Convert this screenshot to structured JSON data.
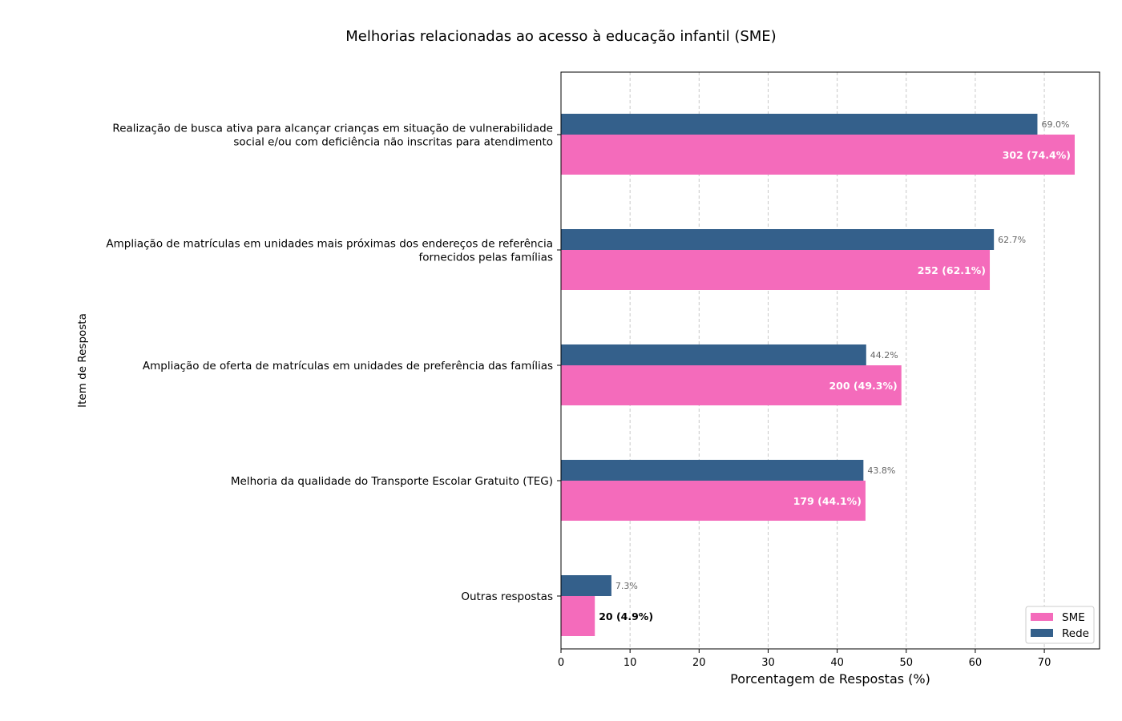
{
  "chart_data": {
    "type": "bar",
    "orientation": "horizontal",
    "title": "Melhorias relacionadas ao acesso à educação infantil (SME)",
    "xlabel": "Porcentagem de Respostas (%)",
    "ylabel": "Item de Resposta",
    "xlim": [
      0,
      78
    ],
    "xticks": [
      0,
      10,
      20,
      30,
      40,
      50,
      60,
      70
    ],
    "grid": "x-dashed",
    "legend_position": "bottom-right",
    "categories": [
      [
        "Realização de busca ativa para alcançar crianças em situação de vulnerabilidade",
        "social e/ou com deficiência não inscritas para atendimento"
      ],
      [
        "Ampliação de matrículas em unidades mais próximas dos endereços de referência",
        "fornecidos pelas famílias"
      ],
      [
        "Ampliação de oferta de matrículas em unidades de preferência das famílias"
      ],
      [
        "Melhoria da qualidade do Transporte Escolar Gratuito (TEG)"
      ],
      [
        "Outras respostas"
      ]
    ],
    "series": [
      {
        "name": "SME",
        "color": "#f46bbb",
        "values": [
          74.4,
          62.1,
          49.3,
          44.1,
          4.9
        ],
        "labels": [
          "302 (74.4%)",
          "252 (62.1%)",
          "200 (49.3%)",
          "179 (44.1%)",
          "20 (4.9%)"
        ]
      },
      {
        "name": "Rede",
        "color": "#34608b",
        "values": [
          69.0,
          62.7,
          44.2,
          43.8,
          7.3
        ],
        "labels": [
          "69.0%",
          "62.7%",
          "44.2%",
          "43.8%",
          "7.3%"
        ]
      }
    ]
  }
}
